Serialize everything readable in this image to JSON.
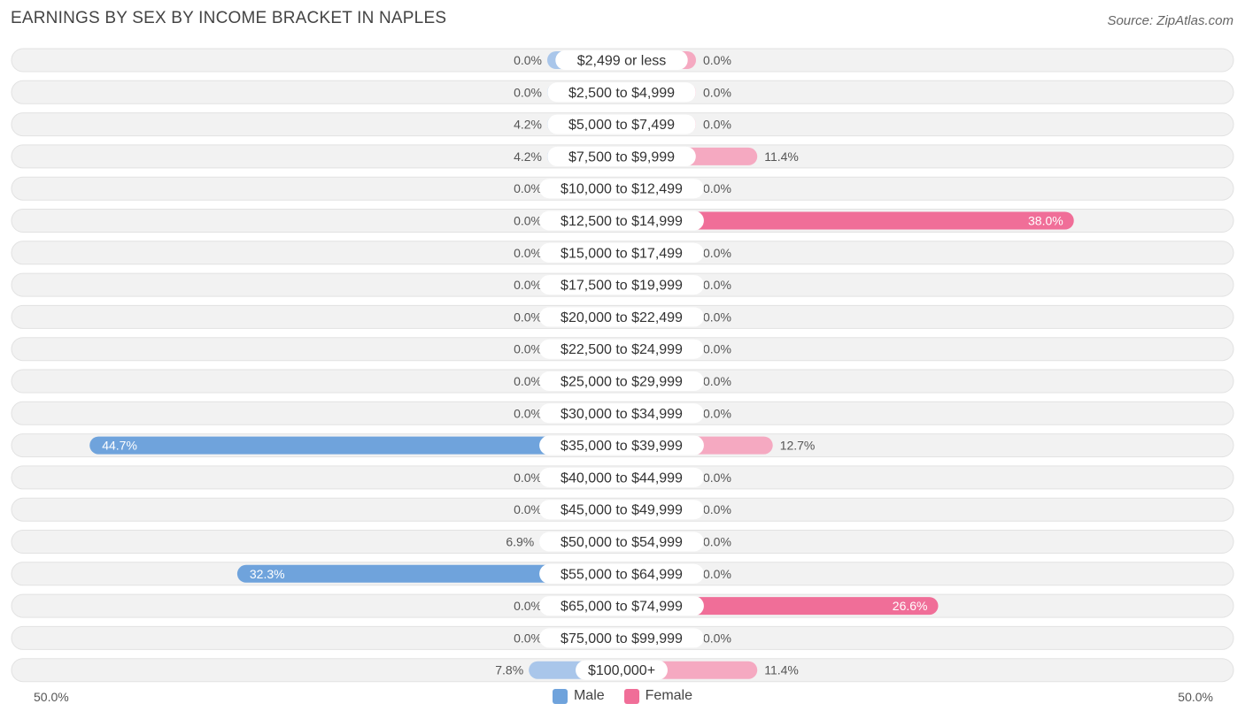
{
  "title": "EARNINGS BY SEX BY INCOME BRACKET IN NAPLES",
  "source": "Source: ZipAtlas.com",
  "colors": {
    "male_light": "#a9c6ea",
    "male_dark": "#6fa3dc",
    "female_light": "#f5a9c1",
    "female_dark": "#f06e98",
    "row_bg": "#f2f2f2"
  },
  "legend": {
    "male": "Male",
    "female": "Female"
  },
  "axis": {
    "left_label": "50.0%",
    "right_label": "50.0%"
  },
  "chart_data": {
    "type": "bar",
    "orientation": "horizontal-diverging",
    "title": "EARNINGS BY SEX BY INCOME BRACKET IN NAPLES",
    "xlim": [
      -50,
      50
    ],
    "categories": [
      "$2,499 or less",
      "$2,500 to $4,999",
      "$5,000 to $7,499",
      "$7,500 to $9,999",
      "$10,000 to $12,499",
      "$12,500 to $14,999",
      "$15,000 to $17,499",
      "$17,500 to $19,999",
      "$20,000 to $22,499",
      "$22,500 to $24,999",
      "$25,000 to $29,999",
      "$30,000 to $34,999",
      "$35,000 to $39,999",
      "$40,000 to $44,999",
      "$45,000 to $49,999",
      "$50,000 to $54,999",
      "$55,000 to $64,999",
      "$65,000 to $74,999",
      "$75,000 to $99,999",
      "$100,000+"
    ],
    "series": [
      {
        "name": "Male",
        "values": [
          0.0,
          0.0,
          4.2,
          4.2,
          0.0,
          0.0,
          0.0,
          0.0,
          0.0,
          0.0,
          0.0,
          0.0,
          44.7,
          0.0,
          0.0,
          6.9,
          32.3,
          0.0,
          0.0,
          7.8
        ],
        "labels": [
          "0.0%",
          "0.0%",
          "4.2%",
          "4.2%",
          "0.0%",
          "0.0%",
          "0.0%",
          "0.0%",
          "0.0%",
          "0.0%",
          "0.0%",
          "0.0%",
          "44.7%",
          "0.0%",
          "0.0%",
          "6.9%",
          "32.3%",
          "0.0%",
          "0.0%",
          "7.8%"
        ]
      },
      {
        "name": "Female",
        "values": [
          0.0,
          0.0,
          0.0,
          11.4,
          0.0,
          38.0,
          0.0,
          0.0,
          0.0,
          0.0,
          0.0,
          0.0,
          12.7,
          0.0,
          0.0,
          0.0,
          0.0,
          26.6,
          0.0,
          11.4
        ],
        "labels": [
          "0.0%",
          "0.0%",
          "0.0%",
          "11.4%",
          "0.0%",
          "38.0%",
          "0.0%",
          "0.0%",
          "0.0%",
          "0.0%",
          "0.0%",
          "0.0%",
          "12.7%",
          "0.0%",
          "0.0%",
          "0.0%",
          "0.0%",
          "26.6%",
          "0.0%",
          "11.4%"
        ]
      }
    ]
  }
}
